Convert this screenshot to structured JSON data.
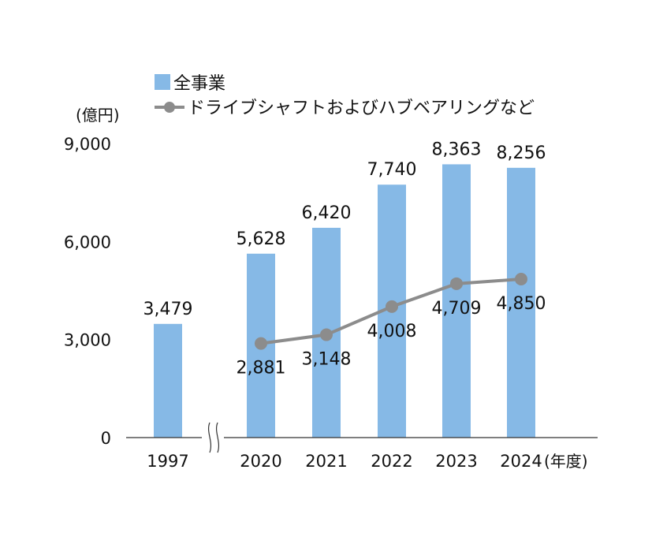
{
  "chart_data": {
    "type": "bar",
    "y_unit": "(億円)",
    "x_unit": "(年度)",
    "categories": [
      "1997",
      "2020",
      "2021",
      "2022",
      "2023",
      "2024"
    ],
    "ylim": [
      0,
      9000
    ],
    "yticks": [
      "0",
      "3,000",
      "6,000",
      "9,000"
    ],
    "ytick_values": [
      0,
      3000,
      6000,
      9000
    ],
    "axis_break_between": [
      "1997",
      "2020"
    ],
    "legend_position": "top-left",
    "grid": false,
    "series": [
      {
        "name": "全事業",
        "kind": "bar",
        "color": "#86b9e6",
        "values": [
          3479,
          5628,
          6420,
          7740,
          8363,
          8256
        ],
        "labels": [
          "3,479",
          "5,628",
          "6,420",
          "7,740",
          "8,363",
          "8,256"
        ]
      },
      {
        "name": "ドライブシャフトおよびハブベアリングなど",
        "kind": "line",
        "color": "#8c8c8c",
        "values": [
          null,
          2881,
          3148,
          4008,
          4709,
          4850
        ],
        "labels": [
          "",
          "2,881",
          "3,148",
          "4,008",
          "4,709",
          "4,850"
        ]
      }
    ]
  }
}
